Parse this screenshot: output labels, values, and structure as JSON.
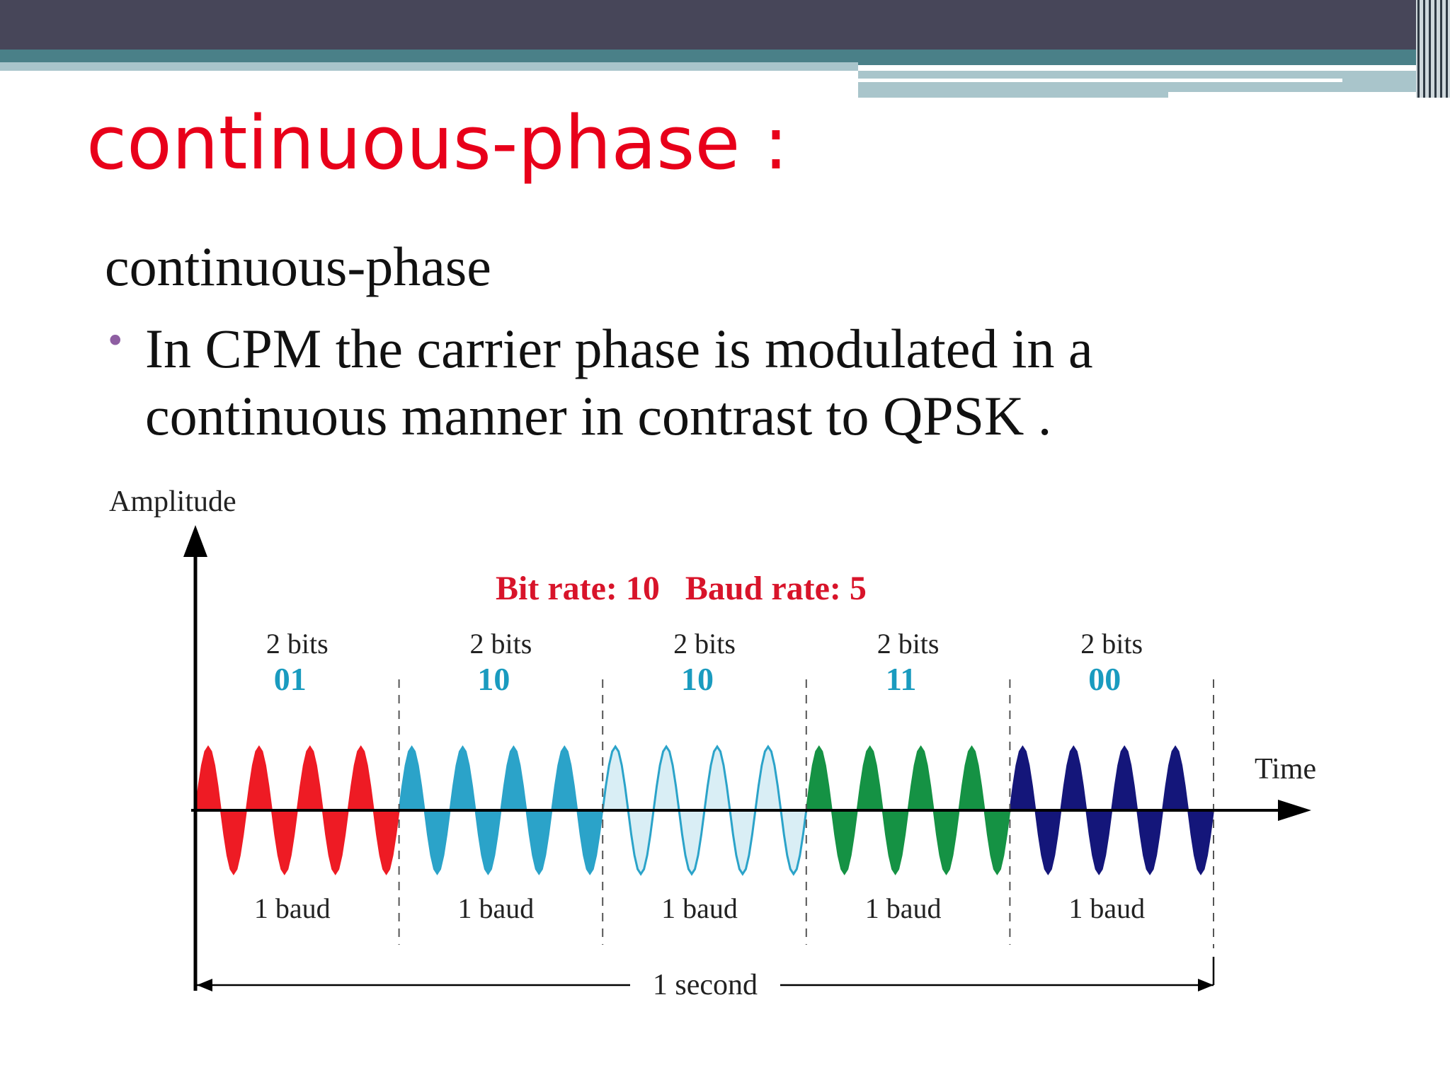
{
  "slide": {
    "title": "continuous-phase :",
    "subtitle": "continuous-phase",
    "bullets": [
      "In CPM the carrier phase is modulated in a continuous manner in contrast to QPSK ."
    ]
  },
  "colors": {
    "title": "#e8001a",
    "bullet": "#8e5ea2",
    "header_dark": "#474659",
    "header_teal": "#4a8088",
    "header_light": "#a9c5cb",
    "rate_text": "#d8142a",
    "bits_value": "#1a9bbf"
  },
  "diagram": {
    "y_axis_label": "Amplitude",
    "x_axis_label": "Time",
    "rate_label": "Bit rate: 10   Baud rate: 5",
    "duration_label": "1 second",
    "segments": [
      {
        "bits_label": "2 bits",
        "bits": "01",
        "baud_label": "1 baud",
        "color": "#ee1b24",
        "fill": "solid"
      },
      {
        "bits_label": "2 bits",
        "bits": "10",
        "baud_label": "1 baud",
        "color": "#2ba3c9",
        "fill": "solid"
      },
      {
        "bits_label": "2 bits",
        "bits": "10",
        "baud_label": "1 baud",
        "color": "#2ba3c9",
        "fill": "light"
      },
      {
        "bits_label": "2 bits",
        "bits": "11",
        "baud_label": "1 baud",
        "color": "#159244",
        "fill": "solid"
      },
      {
        "bits_label": "2 bits",
        "bits": "00",
        "baud_label": "1 baud",
        "color": "#14167a",
        "fill": "solid"
      }
    ]
  }
}
